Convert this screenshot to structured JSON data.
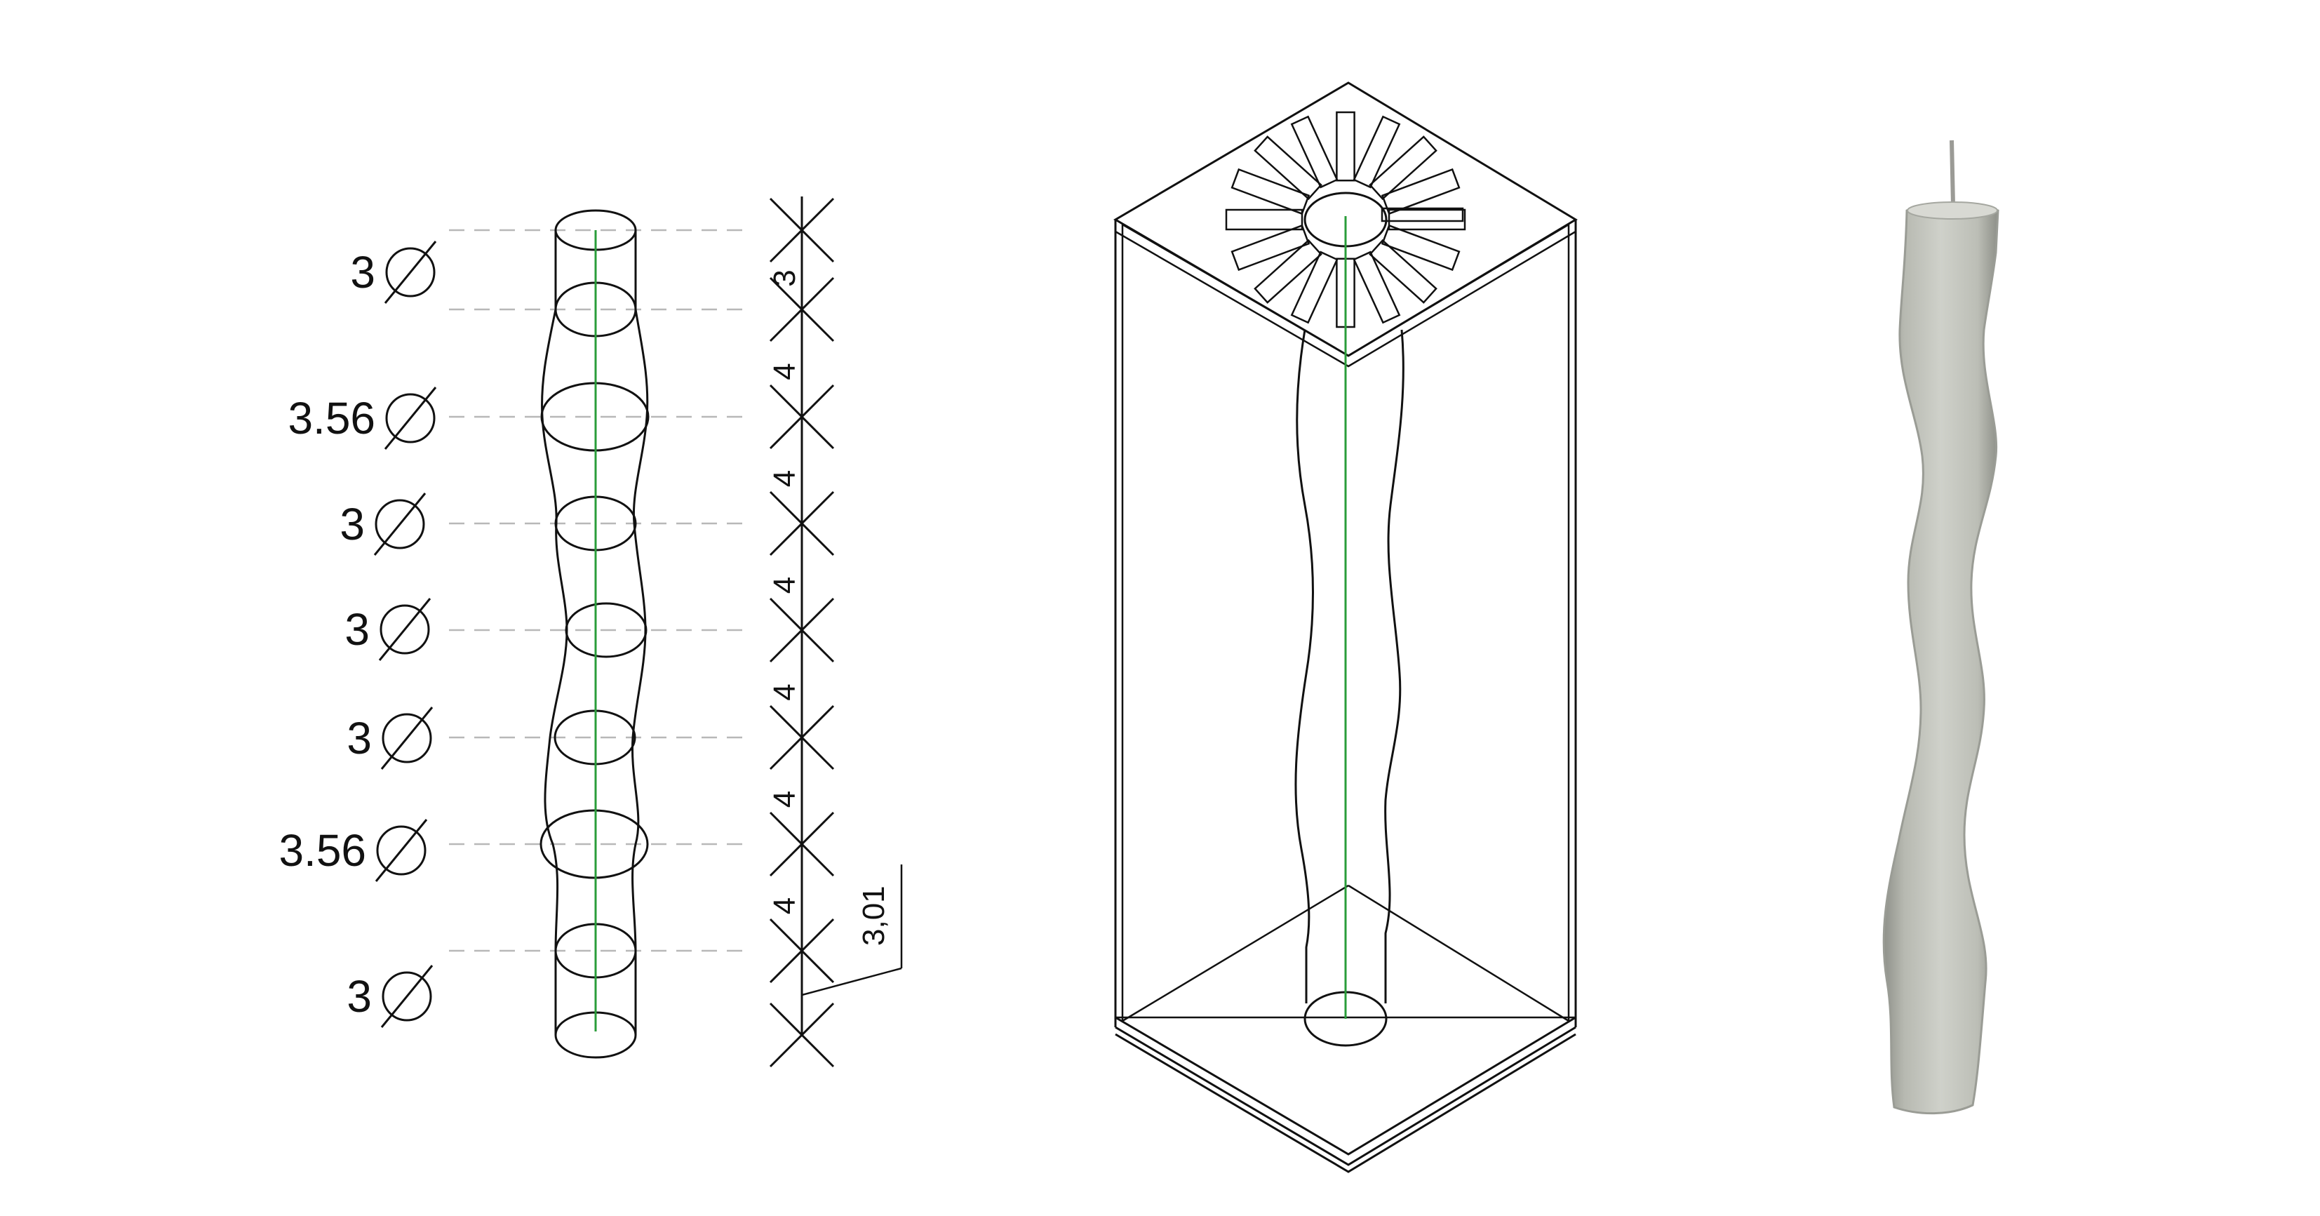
{
  "diameters": [
    {
      "value": "3"
    },
    {
      "value": "3.56"
    },
    {
      "value": "3"
    },
    {
      "value": "3"
    },
    {
      "value": "3"
    },
    {
      "value": "3.56"
    },
    {
      "value": "3"
    }
  ],
  "segments": [
    {
      "value": "3"
    },
    {
      "value": "4"
    },
    {
      "value": "4"
    },
    {
      "value": "4"
    },
    {
      "value": "4"
    },
    {
      "value": "4"
    },
    {
      "value": "4"
    }
  ],
  "extra_dimension": "3,01",
  "colors": {
    "line": "#111111",
    "wick_axis": "#2a9d3a",
    "guide": "#b8b8b8",
    "candle_fill": "#c9cbc4",
    "candle_edge": "#9a9c95",
    "background": "#ffffff"
  }
}
